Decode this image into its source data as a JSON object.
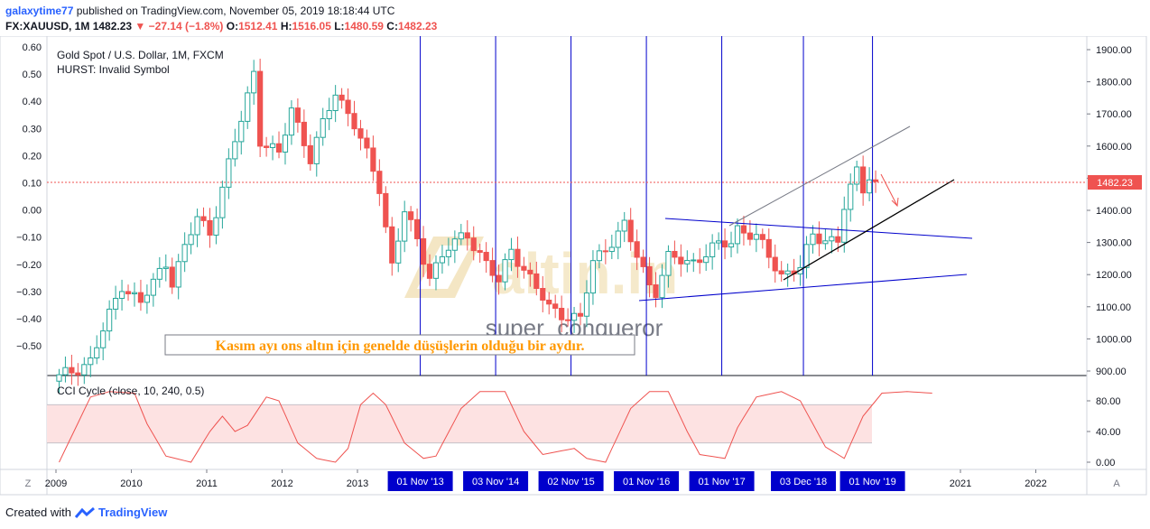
{
  "header": {
    "author": "galaxytime77",
    "published_text": "published on TradingView.com, November 05, 2019 18:18:44 UTC",
    "symbol": "FX:XAUUSD, 1M",
    "last": "1482.23",
    "change": "−27.14 (−1.8%)",
    "o_label": "O:",
    "o": "1512.41",
    "h_label": "H:",
    "h": "1516.05",
    "l_label": "L:",
    "l": "1480.59",
    "c_label": "C:",
    "c": "1482.23"
  },
  "legend": {
    "title": "Gold Spot / U.S. Dollar, 1M, FXCM",
    "hurst": "HURST: Invalid Symbol",
    "cci": "CCI Cycle (close, 10, 240, 0.5)"
  },
  "watermark": {
    "brand": "altin.in",
    "author": "super_conqueror"
  },
  "annotation": "Kasım ayı ons altın için genelde düşüşlerin olduğu bir aydır.",
  "last_price_label": "1482.23",
  "footer": {
    "created_with": "Created with",
    "brand": "TradingView"
  },
  "scale_buttons": {
    "left": "Z",
    "right": "A"
  },
  "colors": {
    "up": "#26a69a",
    "down": "#ef5350",
    "candle_up_body": "#ffffff",
    "cycle_line": "#0000cc",
    "cci_line": "#ef5350",
    "cci_band": "#fde2e2",
    "date_label_bg": "#0000cc",
    "annotation_text": "#ff9800",
    "price_label_bg": "#ef5350"
  },
  "chart_data": {
    "type": "candlestick",
    "x_ticks": [
      "2009",
      "2010",
      "2011",
      "2012",
      "2013",
      "2021",
      "2022"
    ],
    "cycle_dates": [
      "01 Nov '13",
      "03 Nov '14",
      "02 Nov '15",
      "01 Nov '16",
      "01 Nov '17",
      "03 Dec '18",
      "01 Nov '19"
    ],
    "right_axis": {
      "ticks": [
        900,
        1000,
        1100,
        1200,
        1300,
        1400,
        1500,
        1600,
        1700,
        1800,
        1900
      ],
      "labels": [
        "900.00",
        "1000.00",
        "1100.00",
        "1200.00",
        "1300.00",
        "1400.00",
        "1500.00",
        "1600.00",
        "1700.00",
        "1800.00",
        "1900.00"
      ]
    },
    "left_axis": {
      "ticks": [
        -0.5,
        -0.4,
        -0.3,
        -0.2,
        -0.1,
        0,
        0.1,
        0.2,
        0.3,
        0.4,
        0.5,
        0.6
      ],
      "labels": [
        "−0.50",
        "−0.40",
        "−0.30",
        "−0.20",
        "−0.10",
        "0.00",
        "0.10",
        "0.20",
        "0.30",
        "0.40",
        "0.50",
        "0.60"
      ]
    },
    "cci_axis": {
      "ticks": [
        0,
        40,
        80
      ],
      "labels": [
        "0.00",
        "40.00",
        "80.00"
      ],
      "band": [
        25,
        75
      ]
    },
    "price_anchors": [
      [
        "2009-01",
        880
      ],
      [
        "2009-06",
        930
      ],
      [
        "2009-11",
        1170
      ],
      [
        "2010-02",
        1110
      ],
      [
        "2010-06",
        1240
      ],
      [
        "2010-07",
        1180
      ],
      [
        "2010-11",
        1380
      ],
      [
        "2011-01",
        1330
      ],
      [
        "2011-04",
        1540
      ],
      [
        "2011-08",
        1830
      ],
      [
        "2011-09",
        1620
      ],
      [
        "2011-12",
        1570
      ],
      [
        "2012-02",
        1720
      ],
      [
        "2012-05",
        1560
      ],
      [
        "2012-09",
        1770
      ],
      [
        "2012-12",
        1670
      ],
      [
        "2013-04",
        1470
      ],
      [
        "2013-06",
        1230
      ],
      [
        "2013-08",
        1400
      ],
      [
        "2013-12",
        1200
      ],
      [
        "2014-03",
        1285
      ],
      [
        "2014-06",
        1325
      ],
      [
        "2014-11",
        1175
      ],
      [
        "2015-01",
        1280
      ],
      [
        "2015-07",
        1095
      ],
      [
        "2015-11",
        1065
      ],
      [
        "2015-12",
        1060
      ],
      [
        "2016-02",
        1240
      ],
      [
        "2016-07",
        1350
      ],
      [
        "2016-11",
        1170
      ],
      [
        "2016-12",
        1150
      ],
      [
        "2017-02",
        1250
      ],
      [
        "2017-06",
        1240
      ],
      [
        "2017-09",
        1280
      ],
      [
        "2017-12",
        1305
      ],
      [
        "2018-01",
        1345
      ],
      [
        "2018-04",
        1315
      ],
      [
        "2018-08",
        1200
      ],
      [
        "2018-11",
        1222
      ],
      [
        "2019-01",
        1320
      ],
      [
        "2019-05",
        1305
      ],
      [
        "2019-06",
        1410
      ],
      [
        "2019-08",
        1520
      ],
      [
        "2019-09",
        1470
      ],
      [
        "2019-10",
        1512
      ],
      [
        "2019-11",
        1482
      ]
    ],
    "cci_anchors": [
      [
        "2009-01",
        0
      ],
      [
        "2009-06",
        85
      ],
      [
        "2009-09",
        92
      ],
      [
        "2010-01",
        90
      ],
      [
        "2010-03",
        50
      ],
      [
        "2010-06",
        8
      ],
      [
        "2010-10",
        0
      ],
      [
        "2011-01",
        40
      ],
      [
        "2011-03",
        60
      ],
      [
        "2011-05",
        40
      ],
      [
        "2011-07",
        48
      ],
      [
        "2011-10",
        85
      ],
      [
        "2011-12",
        80
      ],
      [
        "2012-03",
        25
      ],
      [
        "2012-06",
        5
      ],
      [
        "2012-09",
        0
      ],
      [
        "2012-11",
        18
      ],
      [
        "2013-01",
        75
      ],
      [
        "2013-03",
        90
      ],
      [
        "2013-05",
        75
      ],
      [
        "2013-08",
        25
      ],
      [
        "2013-11",
        5
      ],
      [
        "2014-01",
        8
      ],
      [
        "2014-05",
        70
      ],
      [
        "2014-08",
        92
      ],
      [
        "2014-12",
        92
      ],
      [
        "2015-03",
        40
      ],
      [
        "2015-06",
        10
      ],
      [
        "2015-11",
        18
      ],
      [
        "2016-01",
        5
      ],
      [
        "2016-04",
        0
      ],
      [
        "2016-08",
        70
      ],
      [
        "2016-11",
        92
      ],
      [
        "2017-02",
        92
      ],
      [
        "2017-05",
        40
      ],
      [
        "2017-07",
        10
      ],
      [
        "2017-11",
        5
      ],
      [
        "2018-01",
        45
      ],
      [
        "2018-04",
        85
      ],
      [
        "2018-08",
        92
      ],
      [
        "2018-11",
        80
      ],
      [
        "2019-03",
        20
      ],
      [
        "2019-06",
        5
      ],
      [
        "2019-09",
        60
      ],
      [
        "2019-12",
        90
      ],
      [
        "2020-04",
        92
      ],
      [
        "2020-08",
        90
      ]
    ]
  }
}
